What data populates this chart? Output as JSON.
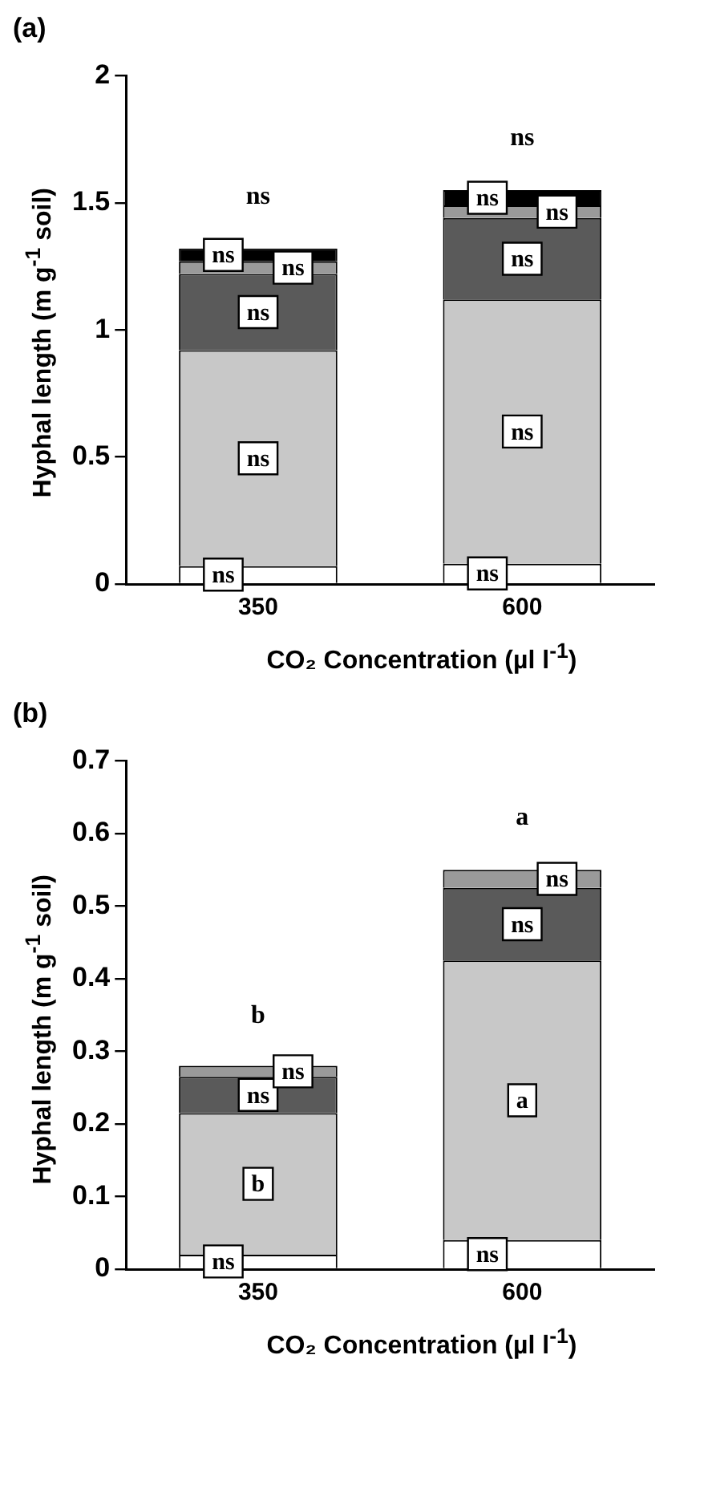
{
  "chart_data": [
    {
      "type": "bar",
      "title": "(a)",
      "xlabel": "CO₂ Concentration (µl l$^{-1}$)",
      "ylabel": "Hyphal length (m g$^{-1}$ soil)",
      "categories": [
        "350",
        "600"
      ],
      "stacked": true,
      "ylim": [
        0,
        2
      ],
      "yticks": [
        0,
        0.5,
        1,
        1.5,
        2
      ],
      "grid": false,
      "series": [
        {
          "color": "#ffffff",
          "values": [
            0.07,
            0.08
          ],
          "value_labels": [
            "ns",
            "ns"
          ]
        },
        {
          "color": "#c8c8c8",
          "values": [
            0.85,
            1.04
          ],
          "value_labels": [
            "ns",
            "ns"
          ]
        },
        {
          "color": "#5a5a5a",
          "values": [
            0.3,
            0.32
          ],
          "value_labels": [
            "ns",
            "ns"
          ]
        },
        {
          "color": "#9a9a9a",
          "values": [
            0.05,
            0.05
          ],
          "value_labels": [
            "ns",
            "ns"
          ]
        },
        {
          "color": "#000000",
          "values": [
            0.05,
            0.06
          ],
          "value_labels": [
            "ns",
            "ns"
          ]
        }
      ],
      "annotations": [
        {
          "text": "ns",
          "x": "350",
          "y": 1.32
        },
        {
          "text": "ns",
          "x": "600",
          "y": 1.55
        }
      ]
    },
    {
      "type": "bar",
      "title": "(b)",
      "xlabel": "CO₂ Concentration (µl l$^{-1}$)",
      "ylabel": "Hyphal length (m g$^{-1}$ soil)",
      "categories": [
        "350",
        "600"
      ],
      "stacked": true,
      "ylim": [
        0,
        0.7
      ],
      "yticks": [
        0,
        0.1,
        0.2,
        0.3,
        0.4,
        0.5,
        0.6,
        0.7
      ],
      "grid": false,
      "series": [
        {
          "color": "#ffffff",
          "values": [
            0.02,
            0.04
          ],
          "value_labels": [
            "ns",
            "ns"
          ]
        },
        {
          "color": "#c8c8c8",
          "values": [
            0.195,
            0.385
          ],
          "value_labels": [
            "b",
            "a"
          ]
        },
        {
          "color": "#5a5a5a",
          "values": [
            0.05,
            0.1
          ],
          "value_labels": [
            "ns",
            "ns"
          ]
        },
        {
          "color": "#9a9a9a",
          "values": [
            0.015,
            0.025
          ],
          "value_labels": [
            "ns",
            "ns"
          ]
        }
      ],
      "annotations": [
        {
          "text": "b",
          "x": "350",
          "y": 0.278
        },
        {
          "text": "a",
          "x": "600",
          "y": 0.55
        }
      ]
    }
  ]
}
